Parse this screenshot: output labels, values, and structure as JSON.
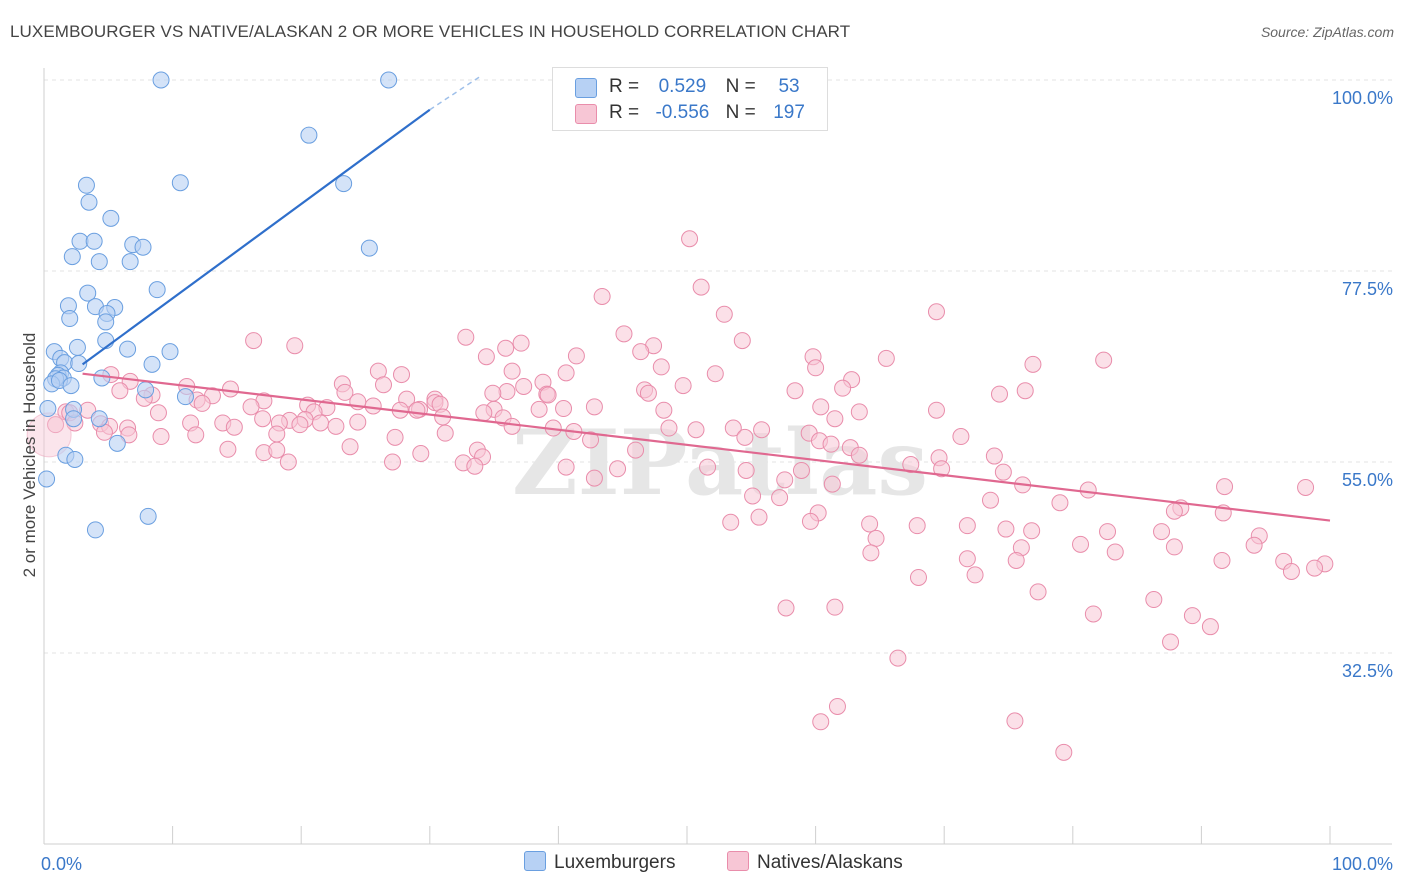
{
  "title": "LUXEMBOURGER VS NATIVE/ALASKAN 2 OR MORE VEHICLES IN HOUSEHOLD CORRELATION CHART",
  "source": "Source: ZipAtlas.com",
  "legend_top": [
    {
      "r_label": "R =",
      "r_value": "0.529",
      "n_label": "N =",
      "n_value": "53"
    },
    {
      "r_label": "R =",
      "r_value": "-0.556",
      "n_label": "N =",
      "n_value": "197"
    }
  ],
  "colors": {
    "blue_fill": "#b7d1f4",
    "blue_stroke": "#6a9fe0",
    "blue_line": "#2f6fcb",
    "pink_fill": "#f7c6d5",
    "pink_stroke": "#e98dab",
    "pink_line": "#e06890",
    "axis_text": "#3a78c9",
    "grid": "#e3e3e3"
  },
  "chart_data": {
    "type": "scatter",
    "title": "LUXEMBOURGER VS NATIVE/ALASKAN 2 OR MORE VEHICLES IN HOUSEHOLD CORRELATION CHART",
    "xlabel": "",
    "ylabel": "2 or more Vehicles in Household",
    "xlim": [
      0,
      100
    ],
    "ylim": [
      10,
      100
    ],
    "x_tick_labels": [
      "0.0%",
      "100.0%"
    ],
    "y_ticks": [
      32.5,
      55.0,
      77.5,
      100.0
    ],
    "y_tick_labels": [
      "32.5%",
      "55.0%",
      "77.5%",
      "100.0%"
    ],
    "grid": true,
    "legend_position": "bottom",
    "watermark": "ZIPatlas",
    "series": [
      {
        "name": "Luxemburgers",
        "r": 0.529,
        "n": 53,
        "trend": {
          "x0": 3,
          "y0": 66.5,
          "x1": 30,
          "y1": 96.5,
          "dash_to_x": 34,
          "dash_to_y": 100.5
        },
        "points": [
          [
            9.1,
            100
          ],
          [
            26.8,
            100
          ],
          [
            20.6,
            93.5
          ],
          [
            10.6,
            87.9
          ],
          [
            23.3,
            87.8
          ],
          [
            3.3,
            87.6
          ],
          [
            3.5,
            85.6
          ],
          [
            5.2,
            83.7
          ],
          [
            2.8,
            81
          ],
          [
            3.9,
            81
          ],
          [
            6.9,
            80.6
          ],
          [
            7.7,
            80.3
          ],
          [
            2.2,
            79.2
          ],
          [
            4.3,
            78.6
          ],
          [
            6.7,
            78.6
          ],
          [
            25.3,
            80.2
          ],
          [
            8.8,
            75.3
          ],
          [
            3.4,
            74.9
          ],
          [
            1.9,
            73.4
          ],
          [
            4.0,
            73.3
          ],
          [
            5.5,
            73.2
          ],
          [
            4.9,
            72.5
          ],
          [
            2.0,
            71.9
          ],
          [
            4.8,
            71.5
          ],
          [
            4.8,
            69.3
          ],
          [
            2.6,
            68.5
          ],
          [
            6.5,
            68.3
          ],
          [
            0.8,
            68.0
          ],
          [
            9.8,
            68.0
          ],
          [
            1.3,
            67.2
          ],
          [
            1.6,
            66.7
          ],
          [
            2.7,
            66.6
          ],
          [
            8.4,
            66.5
          ],
          [
            1.3,
            65.5
          ],
          [
            1.1,
            65.2
          ],
          [
            1.5,
            64.9
          ],
          [
            0.9,
            64.8
          ],
          [
            0.6,
            64.2
          ],
          [
            4.5,
            64.9
          ],
          [
            1.2,
            64.6
          ],
          [
            2.1,
            64.0
          ],
          [
            7.9,
            63.5
          ],
          [
            11.0,
            62.7
          ],
          [
            0.3,
            61.3
          ],
          [
            2.3,
            61.2
          ],
          [
            4.3,
            60.1
          ],
          [
            2.3,
            60.1
          ],
          [
            5.7,
            57.2
          ],
          [
            1.7,
            55.8
          ],
          [
            2.4,
            55.3
          ],
          [
            0.2,
            53.0
          ],
          [
            8.1,
            48.6
          ],
          [
            4.0,
            47.0
          ]
        ]
      },
      {
        "name": "Natives/Alaskans",
        "r": -0.556,
        "n": 197,
        "trend": {
          "x0": 3,
          "y0": 65.4,
          "x1": 100,
          "y1": 48.1
        },
        "points": [
          [
            50.2,
            81.3
          ],
          [
            51.1,
            75.6
          ],
          [
            43.4,
            74.5
          ],
          [
            52.9,
            72.4
          ],
          [
            69.4,
            72.7
          ],
          [
            32.8,
            69.7
          ],
          [
            45.1,
            70.1
          ],
          [
            54.3,
            69.3
          ],
          [
            37.1,
            69.0
          ],
          [
            16.3,
            69.3
          ],
          [
            19.5,
            68.7
          ],
          [
            47.4,
            68.7
          ],
          [
            35.9,
            68.4
          ],
          [
            46.4,
            68.0
          ],
          [
            41.4,
            67.5
          ],
          [
            34.4,
            67.4
          ],
          [
            59.8,
            67.4
          ],
          [
            65.5,
            67.2
          ],
          [
            82.4,
            67.0
          ],
          [
            76.9,
            66.5
          ],
          [
            48.0,
            66.2
          ],
          [
            60.0,
            66.1
          ],
          [
            36.4,
            65.7
          ],
          [
            26.0,
            65.7
          ],
          [
            40.6,
            65.5
          ],
          [
            52.2,
            65.4
          ],
          [
            27.8,
            65.3
          ],
          [
            5.2,
            65.3
          ],
          [
            6.7,
            64.5
          ],
          [
            62.8,
            64.7
          ],
          [
            38.8,
            64.4
          ],
          [
            23.2,
            64.2
          ],
          [
            26.4,
            64.1
          ],
          [
            49.7,
            64.0
          ],
          [
            37.3,
            63.9
          ],
          [
            62.1,
            63.7
          ],
          [
            11.1,
            63.9
          ],
          [
            5.9,
            63.4
          ],
          [
            14.5,
            63.6
          ],
          [
            46.7,
            63.5
          ],
          [
            36.0,
            63.3
          ],
          [
            58.4,
            63.4
          ],
          [
            76.3,
            63.4
          ],
          [
            23.4,
            63.2
          ],
          [
            47.0,
            63.1
          ],
          [
            34.9,
            63.1
          ],
          [
            39.1,
            63.0
          ],
          [
            74.3,
            63.0
          ],
          [
            39.2,
            62.9
          ],
          [
            13.1,
            62.8
          ],
          [
            8.4,
            62.9
          ],
          [
            7.8,
            62.5
          ],
          [
            30.4,
            62.4
          ],
          [
            11.9,
            62.3
          ],
          [
            28.2,
            62.4
          ],
          [
            17.1,
            62.2
          ],
          [
            24.4,
            62.1
          ],
          [
            30.4,
            62.0
          ],
          [
            30.8,
            61.8
          ],
          [
            12.3,
            61.9
          ],
          [
            20.5,
            61.7
          ],
          [
            42.8,
            61.5
          ],
          [
            25.6,
            61.6
          ],
          [
            29.2,
            61.2
          ],
          [
            29.0,
            61.1
          ],
          [
            60.4,
            61.5
          ],
          [
            16.1,
            61.5
          ],
          [
            22.0,
            61.4
          ],
          [
            40.4,
            61.3
          ],
          [
            35.0,
            61.2
          ],
          [
            38.5,
            61.2
          ],
          [
            48.2,
            61.1
          ],
          [
            27.7,
            61.1
          ],
          [
            69.4,
            61.1
          ],
          [
            63.4,
            60.9
          ],
          [
            3.4,
            61.1
          ],
          [
            1.7,
            60.9
          ],
          [
            2.0,
            60.8
          ],
          [
            21.0,
            60.9
          ],
          [
            8.9,
            60.8
          ],
          [
            34.2,
            60.8
          ],
          [
            31.0,
            60.3
          ],
          [
            35.7,
            60.2
          ],
          [
            17.0,
            60.1
          ],
          [
            20.3,
            60.0
          ],
          [
            19.1,
            59.9
          ],
          [
            61.5,
            60.1
          ],
          [
            24.4,
            59.7
          ],
          [
            2.4,
            59.6
          ],
          [
            11.4,
            59.6
          ],
          [
            13.9,
            59.6
          ],
          [
            18.3,
            59.6
          ],
          [
            21.5,
            59.6
          ],
          [
            4.4,
            59.5
          ],
          [
            19.9,
            59.4
          ],
          [
            0.9,
            59.4
          ],
          [
            5.1,
            59.2
          ],
          [
            22.7,
            59.2
          ],
          [
            36.4,
            59.2
          ],
          [
            14.8,
            59.1
          ],
          [
            6.5,
            59.0
          ],
          [
            39.6,
            59.0
          ],
          [
            48.6,
            59.0
          ],
          [
            53.6,
            59.0
          ],
          [
            50.7,
            58.8
          ],
          [
            55.8,
            58.8
          ],
          [
            41.2,
            58.6
          ],
          [
            59.5,
            58.4
          ],
          [
            31.2,
            58.4
          ],
          [
            4.7,
            58.5
          ],
          [
            6.6,
            58.2
          ],
          [
            11.8,
            58.2
          ],
          [
            18.1,
            58.3
          ],
          [
            9.1,
            58.0
          ],
          [
            71.3,
            58.0
          ],
          [
            27.3,
            57.9
          ],
          [
            54.5,
            57.9
          ],
          [
            42.5,
            57.6
          ],
          [
            60.3,
            57.5
          ],
          [
            61.2,
            57.1
          ],
          [
            23.8,
            56.8
          ],
          [
            62.7,
            56.7
          ],
          [
            14.3,
            56.5
          ],
          [
            29.3,
            56.0
          ],
          [
            46.0,
            56.4
          ],
          [
            17.1,
            56.1
          ],
          [
            18.1,
            56.4
          ],
          [
            33.7,
            56.4
          ],
          [
            63.4,
            55.8
          ],
          [
            34.1,
            55.6
          ],
          [
            73.9,
            55.7
          ],
          [
            69.6,
            55.5
          ],
          [
            27.1,
            55.0
          ],
          [
            19.0,
            55.0
          ],
          [
            32.6,
            54.9
          ],
          [
            33.5,
            54.5
          ],
          [
            40.6,
            54.4
          ],
          [
            51.6,
            54.4
          ],
          [
            67.4,
            54.7
          ],
          [
            69.8,
            54.2
          ],
          [
            44.6,
            54.2
          ],
          [
            58.9,
            54.0
          ],
          [
            54.6,
            54.0
          ],
          [
            74.6,
            53.8
          ],
          [
            42.8,
            53.1
          ],
          [
            57.6,
            52.9
          ],
          [
            61.3,
            52.4
          ],
          [
            76.1,
            52.3
          ],
          [
            91.8,
            52.1
          ],
          [
            98.1,
            52.0
          ],
          [
            81.2,
            51.7
          ],
          [
            55.1,
            51.0
          ],
          [
            57.2,
            50.8
          ],
          [
            73.6,
            50.5
          ],
          [
            79.0,
            50.2
          ],
          [
            88.4,
            49.6
          ],
          [
            87.9,
            49.2
          ],
          [
            91.7,
            49.0
          ],
          [
            60.2,
            49.0
          ],
          [
            55.6,
            48.5
          ],
          [
            59.6,
            48.0
          ],
          [
            53.4,
            47.9
          ],
          [
            64.2,
            47.7
          ],
          [
            71.8,
            47.5
          ],
          [
            67.9,
            47.5
          ],
          [
            74.8,
            47.1
          ],
          [
            82.7,
            46.8
          ],
          [
            76.8,
            46.9
          ],
          [
            86.9,
            46.8
          ],
          [
            94.5,
            46.3
          ],
          [
            64.7,
            46.0
          ],
          [
            80.6,
            45.3
          ],
          [
            94.1,
            45.2
          ],
          [
            87.9,
            45.0
          ],
          [
            76.0,
            44.9
          ],
          [
            83.3,
            44.4
          ],
          [
            64.3,
            44.3
          ],
          [
            71.8,
            43.6
          ],
          [
            75.6,
            43.4
          ],
          [
            91.6,
            43.4
          ],
          [
            96.4,
            43.3
          ],
          [
            99.6,
            43.0
          ],
          [
            98.8,
            42.5
          ],
          [
            72.4,
            41.7
          ],
          [
            68.0,
            41.4
          ],
          [
            77.3,
            39.7
          ],
          [
            61.5,
            37.9
          ],
          [
            57.7,
            37.8
          ],
          [
            81.6,
            37.1
          ],
          [
            89.3,
            36.9
          ],
          [
            90.7,
            35.6
          ],
          [
            87.6,
            33.8
          ],
          [
            66.4,
            31.9
          ],
          [
            61.7,
            26.2
          ],
          [
            60.4,
            24.4
          ],
          [
            79.3,
            20.8
          ],
          [
            75.5,
            24.5
          ],
          [
            86.3,
            38.8
          ],
          [
            97.0,
            42.1
          ]
        ]
      }
    ]
  }
}
